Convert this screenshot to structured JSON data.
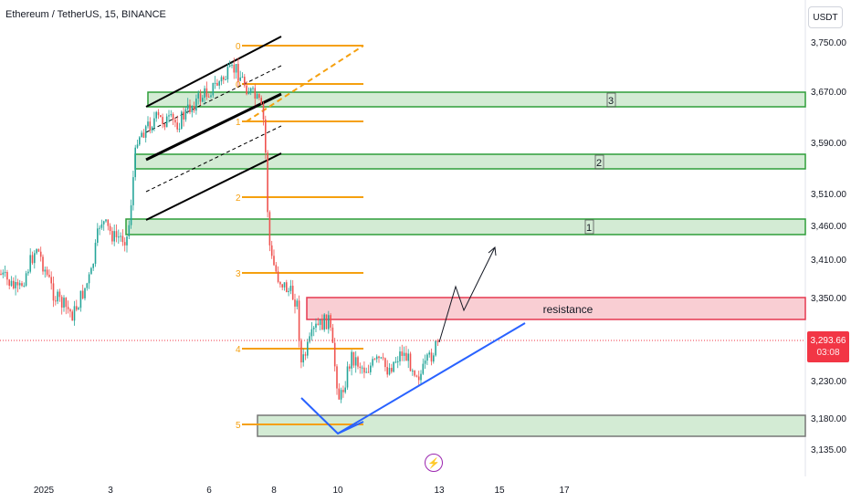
{
  "header": {
    "title": "Ethereum / TetherUS, 15, BINANCE",
    "currency_button": "USDT"
  },
  "price_axis": {
    "labels": [
      "3,750.00",
      "3,670.00",
      "3,590.00",
      "3,510.00",
      "3,460.00",
      "3,410.00",
      "3,350.00",
      "3,230.00",
      "3,180.00",
      "3,135.00"
    ],
    "current_price": "3,293.66",
    "countdown": "03:08"
  },
  "time_axis": {
    "labels": [
      "2025",
      "3",
      "6",
      "8",
      "10",
      "13",
      "15",
      "17"
    ]
  },
  "fib_levels": [
    "0",
    "0",
    "1",
    "2",
    "3",
    "4",
    "5"
  ],
  "zone_labels": [
    "3",
    "2",
    "1"
  ],
  "resistance_label": "resistance",
  "icons": {
    "event": "lightning-icon"
  },
  "colors": {
    "up": "#26a69a",
    "down": "#ef5350",
    "zone_green_fill": "#c8e6c9",
    "zone_green_border": "#2e9e3a",
    "resistance_fill": "#f8c5cb",
    "resistance_border": "#e53950",
    "fib": "#f5a00f",
    "trend_blue": "#2962ff",
    "current_price": "#f23645",
    "event_purple": "#9c27b0"
  },
  "chart_data": {
    "type": "candlestick",
    "symbol": "ETH/USDT",
    "exchange": "BINANCE",
    "interval": "15",
    "price_range": [
      3115,
      3790
    ],
    "support_resistance_zones": [
      {
        "label": "3",
        "low": 3650,
        "high": 3675
      },
      {
        "label": "2",
        "low": 3560,
        "high": 3580
      },
      {
        "label": "1",
        "low": 3455,
        "high": 3475
      },
      {
        "label": "resistance",
        "low": 3325,
        "high": 3355
      },
      {
        "label": "",
        "low": 3160,
        "high": 3187
      }
    ],
    "last_price": 3293.66
  }
}
